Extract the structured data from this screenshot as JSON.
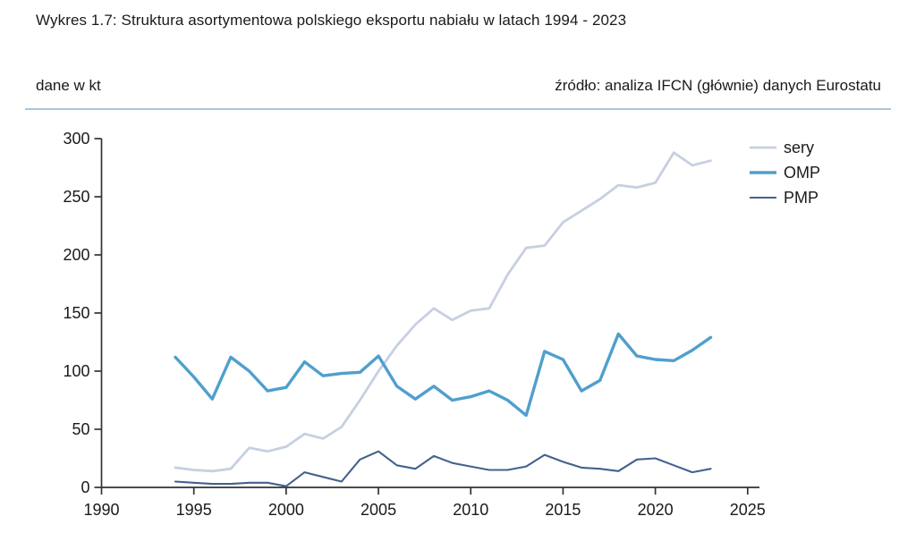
{
  "header": {
    "title": "Wykres 1.7: Struktura asortymentowa polskiego eksportu nabiału w latach 1994 - 2023",
    "units_note": "dane w kt",
    "source_note": "źródło: analiza IFCN (głównie) danych Eurostatu"
  },
  "colors": {
    "background": "#ffffff",
    "divider": "#a9c5db",
    "axis": "#333333",
    "text": "#1a1a1a"
  },
  "chart_data": {
    "type": "line",
    "title": "Struktura asortymentowa polskiego eksportu nabiału w latach 1994 - 2023",
    "xlabel": "",
    "ylabel": "dane w kt",
    "x": [
      1994,
      1995,
      1996,
      1997,
      1998,
      1999,
      2000,
      2001,
      2002,
      2003,
      2004,
      2005,
      2006,
      2007,
      2008,
      2009,
      2010,
      2011,
      2012,
      2013,
      2014,
      2015,
      2016,
      2017,
      2018,
      2019,
      2020,
      2021,
      2022,
      2023
    ],
    "series": [
      {
        "name": "sery",
        "color": "#c7cfe2",
        "values": [
          17,
          15,
          14,
          16,
          34,
          31,
          35,
          46,
          42,
          52,
          75,
          100,
          122,
          140,
          154,
          144,
          152,
          154,
          183,
          206,
          208,
          228,
          238,
          248,
          260,
          258,
          262,
          288,
          277,
          281
        ]
      },
      {
        "name": "OMP",
        "color": "#4f9fcd",
        "values": [
          112,
          95,
          76,
          112,
          100,
          83,
          86,
          108,
          96,
          98,
          99,
          113,
          87,
          76,
          87,
          75,
          78,
          83,
          75,
          62,
          117,
          110,
          83,
          92,
          132,
          113,
          110,
          109,
          118,
          129
        ]
      },
      {
        "name": "PMP",
        "color": "#44618e",
        "values": [
          5,
          4,
          3,
          3,
          4,
          4,
          1,
          13,
          9,
          5,
          24,
          31,
          19,
          16,
          27,
          21,
          18,
          15,
          15,
          18,
          28,
          22,
          17,
          16,
          14,
          24,
          25,
          19,
          13,
          16
        ]
      }
    ],
    "xlim": [
      1990,
      2025
    ],
    "ylim": [
      0,
      300
    ],
    "xticks": [
      1990,
      1995,
      2000,
      2005,
      2010,
      2015,
      2020,
      2025
    ],
    "yticks": [
      0,
      50,
      100,
      150,
      200,
      250,
      300
    ],
    "grid": false,
    "legend_position": "top-right"
  }
}
